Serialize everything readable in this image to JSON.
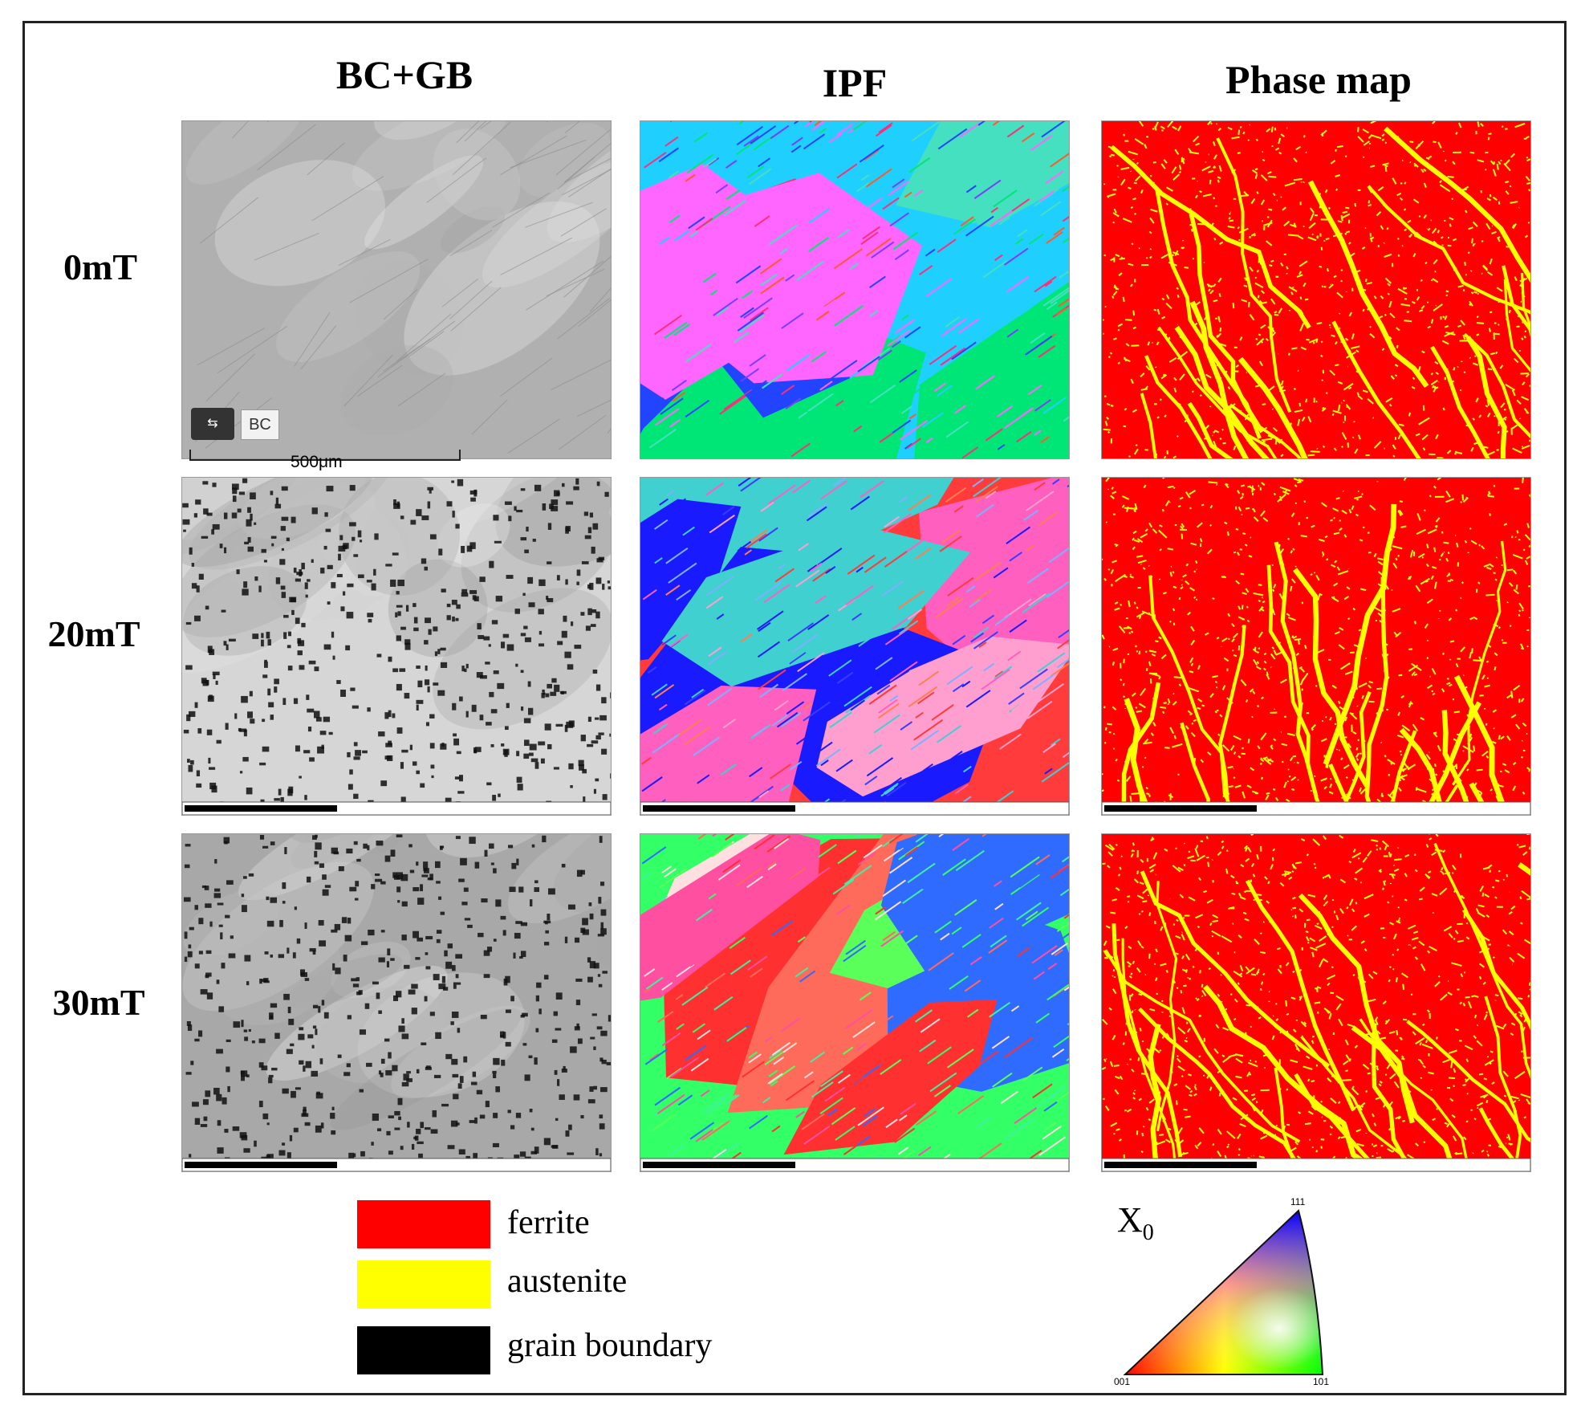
{
  "columns": [
    "BC+GB",
    "IPF",
    "Phase map"
  ],
  "rows": [
    "0mT",
    "20mT",
    "30mT"
  ],
  "scale_bar": "500μm",
  "bc_badge": "BC",
  "legend": {
    "items": [
      {
        "label": "ferrite",
        "color": "#ff0000"
      },
      {
        "label": "austenite",
        "color": "#ffff00"
      },
      {
        "label": "grain boundary",
        "color": "#000000"
      }
    ]
  },
  "ipf_key": {
    "symbol_main": "X",
    "symbol_sub": "0",
    "corner_111": "111",
    "corner_001": "001",
    "corner_101": "101"
  },
  "colors": {
    "ferrite": "#ff0000",
    "austenite": "#ffff00",
    "boundary": "#000000",
    "bc_gray": "#b4b4b4"
  }
}
